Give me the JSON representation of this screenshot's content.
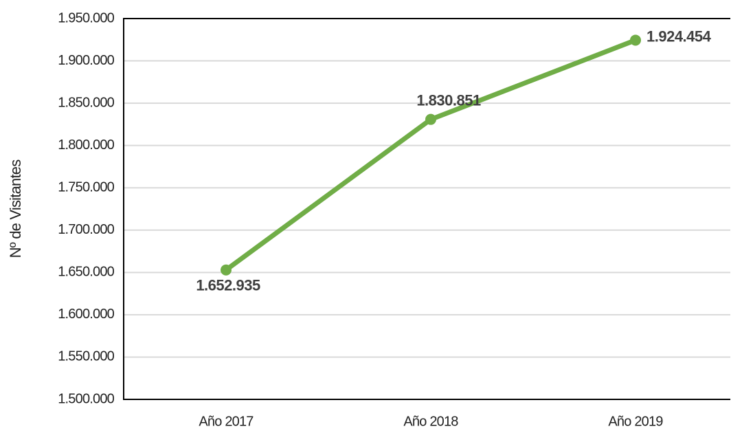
{
  "chart_data": {
    "type": "line",
    "y_label": "Nº de Visitantes",
    "categories": [
      "Año 2017",
      "Año 2018",
      "Año 2019"
    ],
    "series": [
      {
        "name": "Visitantes",
        "color": "#70ad47",
        "values": [
          1652935,
          1830851,
          1924454
        ],
        "value_labels": [
          "1.652.935",
          "1.830.851",
          "1.924.454"
        ]
      }
    ],
    "ylim": [
      1500000,
      1950000
    ],
    "yticks": [
      {
        "value": 1500000,
        "label": "1.500.000"
      },
      {
        "value": 1550000,
        "label": "1.550.000"
      },
      {
        "value": 1600000,
        "label": "1.600.000"
      },
      {
        "value": 1650000,
        "label": "1.650.000"
      },
      {
        "value": 1700000,
        "label": "1.700.000"
      },
      {
        "value": 1750000,
        "label": "1.750.000"
      },
      {
        "value": 1800000,
        "label": "1.800.000"
      },
      {
        "value": 1850000,
        "label": "1.850.000"
      },
      {
        "value": 1900000,
        "label": "1.900.000"
      },
      {
        "value": 1950000,
        "label": "1.950.000"
      }
    ],
    "grid": true
  }
}
